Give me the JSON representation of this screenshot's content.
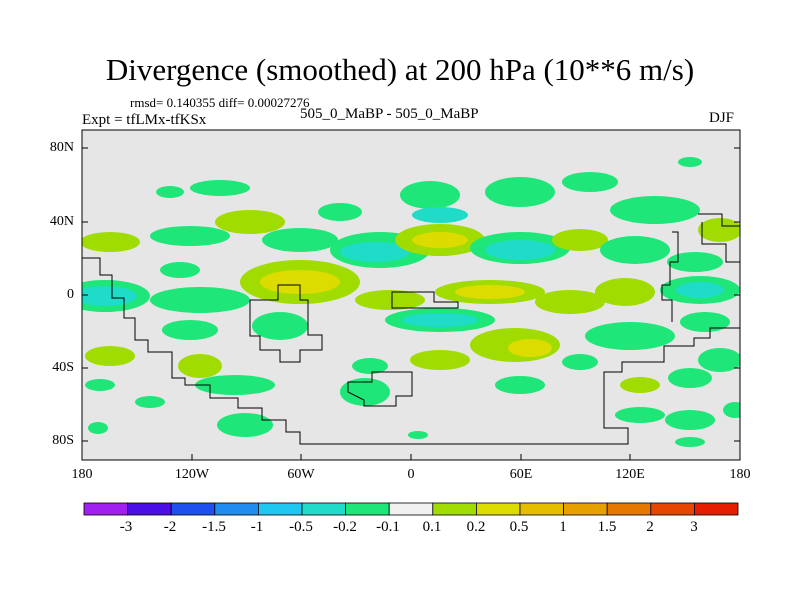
{
  "title": "Divergence (smoothed) at 200 hPa (10**6 m/s)",
  "stats": "rmsd= 0.140355 diff= 0.00027276",
  "left_label": "Expt = tfLMx-tfKSx",
  "center_label": "505_0_MaBP - 505_0_MaBP",
  "right_label": "DJF",
  "y_ticks": [
    "80N",
    "40N",
    "0",
    "40S",
    "80S"
  ],
  "x_ticks": [
    "180",
    "120W",
    "60W",
    "0",
    "60E",
    "120E",
    "180"
  ],
  "colorbar": {
    "colors": [
      "#a020f0",
      "#4b0fe6",
      "#1e50f0",
      "#1e8cf0",
      "#1ec8f0",
      "#1edcc8",
      "#1ee678",
      "#f0f0f0",
      "#a0dc00",
      "#dcdc00",
      "#e6be00",
      "#e6a000",
      "#e67800",
      "#e64600",
      "#e61e00"
    ],
    "labels": [
      "-3",
      "-2",
      "-1.5",
      "-1",
      "-0.5",
      "-0.2",
      "-0.1",
      "0.1",
      "0.2",
      "0.5",
      "1",
      "1.5",
      "2",
      "3"
    ]
  }
}
